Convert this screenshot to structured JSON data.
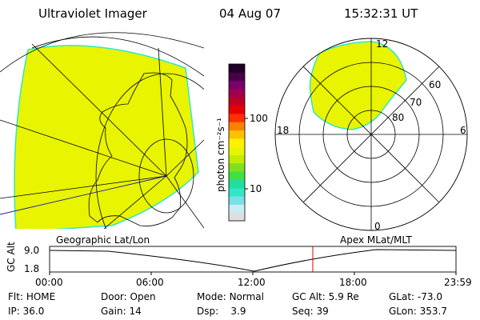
{
  "header": {
    "instrument": "Ultraviolet Imager",
    "date": "04 Aug 07",
    "time": "15:32:31 UT"
  },
  "colorbar": {
    "unit_label": "photon cm⁻²s⁻¹",
    "tick_100": "100",
    "tick_10": "10",
    "colors": [
      "#dfdfdf",
      "#c8ecf0",
      "#78e0e8",
      "#30e8c8",
      "#20e0a0",
      "#40e040",
      "#80e020",
      "#c0ec00",
      "#e8f400",
      "#fff000",
      "#ffc000",
      "#ff8000",
      "#ff3000",
      "#e80000",
      "#c00020",
      "#a00050",
      "#780068",
      "#480048",
      "#200028"
    ]
  },
  "geo_map": {
    "label": "Geographic Lat/Lon",
    "fill_color": "#e8f400",
    "edge_color": "#30e8c8"
  },
  "polar_plot": {
    "label": "Apex MLat/MLT",
    "mlt_labels": {
      "top": "12",
      "left": "18",
      "right": "6",
      "bottom": "0"
    },
    "lat_labels": [
      "60",
      "70",
      "80"
    ]
  },
  "altitude_plot": {
    "ylabel": "GC Alt",
    "y_ticks": [
      "9.0",
      "1.8"
    ],
    "x_ticks": [
      "00:00",
      "06:00",
      "12:00",
      "18:00",
      "23:59"
    ],
    "marker_color": "#e00000",
    "chart_data": {
      "type": "line",
      "x_range": [
        "00:00",
        "23:59"
      ],
      "y_range": [
        1.8,
        9.0
      ],
      "current_time": "15:32:31"
    }
  },
  "status": {
    "flt_label": "Flt:",
    "flt_value": "HOME",
    "ip_label": "IP:",
    "ip_value": "36.0",
    "door_label": "Door:",
    "door_value": "Open",
    "gain_label": "Gain:",
    "gain_value": "14",
    "mode_label": "Mode:",
    "mode_value": "Normal",
    "dsp_label": "Dsp:",
    "dsp_value": "3.9",
    "gcalt_label": "GC Alt:",
    "gcalt_value": "5.9 Re",
    "seq_label": "Seq:",
    "seq_value": "39",
    "glat_label": "GLat:",
    "glat_value": "-73.0",
    "glon_label": "GLon:",
    "glon_value": "353.7"
  }
}
